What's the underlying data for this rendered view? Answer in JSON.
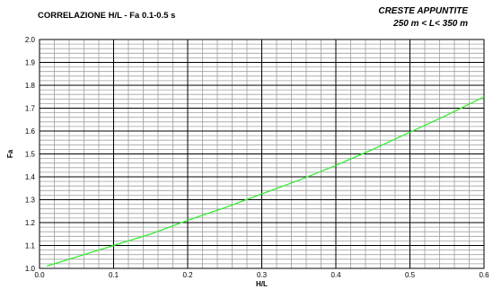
{
  "chart_data": {
    "type": "line",
    "title": "CORRELAZIONE H/L - Fa 0.1-0.5 s",
    "subtitle_lines": [
      "CRESTE APPUNTITE",
      "250 m < L< 350 m"
    ],
    "xlabel": "H/L",
    "ylabel": "Fa",
    "xlim": [
      0.0,
      0.6
    ],
    "ylim": [
      1.0,
      2.0
    ],
    "x_ticks": [
      "0.0",
      "0.1",
      "0.2",
      "0.3",
      "0.4",
      "0.5",
      "0.6"
    ],
    "y_ticks": [
      "1.0",
      "1.1",
      "1.2",
      "1.3",
      "1.4",
      "1.5",
      "1.6",
      "1.7",
      "1.8",
      "1.9",
      "2.0"
    ],
    "grid": true,
    "series": [
      {
        "color": "#33ee33",
        "x": [
          0.01,
          0.05,
          0.1,
          0.15,
          0.2,
          0.25,
          0.3,
          0.35,
          0.4,
          0.45,
          0.5,
          0.55,
          0.6
        ],
        "y": [
          1.01,
          1.05,
          1.1,
          1.15,
          1.21,
          1.265,
          1.325,
          1.385,
          1.45,
          1.52,
          1.595,
          1.67,
          1.75
        ]
      }
    ]
  }
}
